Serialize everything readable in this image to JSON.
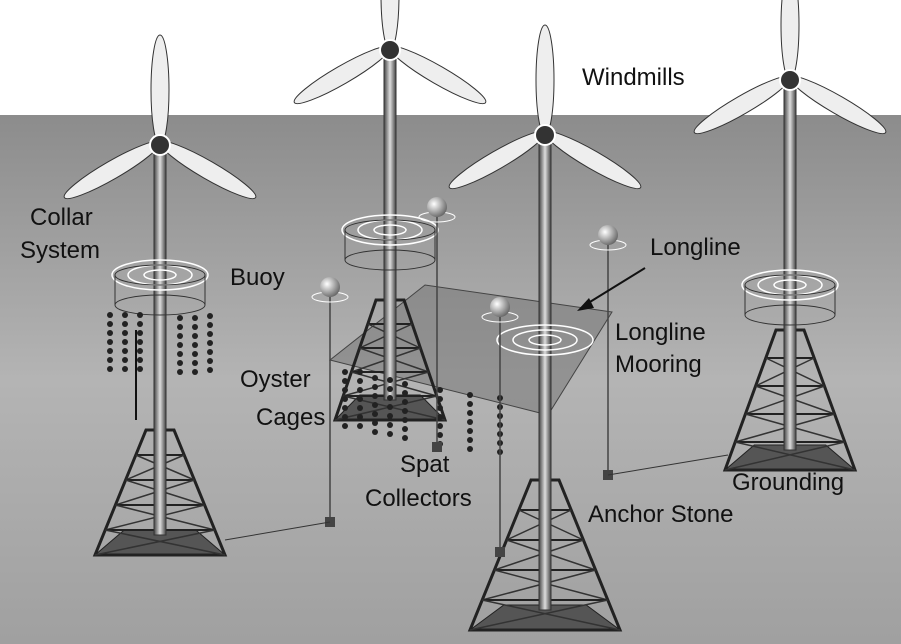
{
  "labels": [
    {
      "lines": [
        "Windmills"
      ]
    },
    {
      "lines": [
        "Collar",
        "System"
      ]
    },
    {
      "lines": [
        "Buoy"
      ]
    },
    {
      "lines": [
        "Longline"
      ]
    },
    {
      "lines": [
        "Longline",
        "Mooring"
      ]
    },
    {
      "lines": [
        "Oyster",
        "Cages"
      ]
    },
    {
      "lines": [
        "Spat",
        "Collectors"
      ]
    },
    {
      "lines": [
        "Grounding"
      ]
    },
    {
      "lines": [
        "Anchor Stone"
      ]
    }
  ]
}
